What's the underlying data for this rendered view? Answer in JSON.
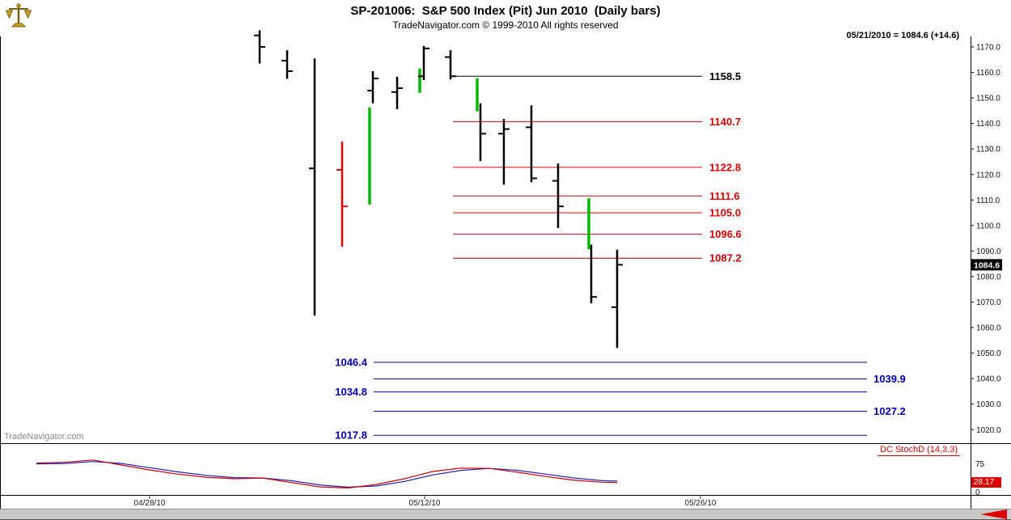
{
  "header": {
    "title": "SP-201006:  S&P 500 Index (Pit) Jun 2010  (Daily bars)",
    "copyright": "TradeNavigator.com © 1999-2010 All rights reserved",
    "quote": "05/21/2010 = 1084.6 (+14.6)",
    "logo_icon": "balance-scale-icon"
  },
  "watermark": "TradeNavigator.com",
  "chart_data": {
    "type": "ohlc-bar",
    "title": "SP-201006: S&P 500 Index (Pit) Jun 2010 (Daily bars)",
    "y_axis": {
      "side": "right",
      "ticks": [
        1170,
        1160,
        1150,
        1140,
        1130,
        1120,
        1110,
        1100,
        1090,
        1080,
        1070,
        1060,
        1050,
        1040,
        1030,
        1020
      ],
      "ylim": [
        1015,
        1178
      ],
      "last_price": 1084.6,
      "last_price_label": "1084.6"
    },
    "x_axis": {
      "labels": [
        {
          "text": "04/28/10",
          "x": 185
        },
        {
          "text": "05/12/10",
          "x": 525
        },
        {
          "text": "05/26/10",
          "x": 866
        }
      ]
    },
    "bar_colors": {
      "black": "#000000",
      "red": "#dd0000",
      "green": "#00bb00"
    },
    "bars": [
      {
        "x": 321,
        "hi": 1176.5,
        "lo": 1163.5,
        "o": 1174.5,
        "c": 1170.0,
        "color": "black"
      },
      {
        "x": 355,
        "hi": 1168.7,
        "lo": 1157.5,
        "o": 1164.6,
        "c": 1160.5,
        "color": "black"
      },
      {
        "x": 389,
        "hi": 1165.5,
        "lo": 1064.7,
        "o": 1122.4,
        "c": null,
        "color": "black"
      },
      {
        "x": 423,
        "hi": 1132.9,
        "lo": 1091.7,
        "o": 1121.8,
        "c": 1107.5,
        "color": "red"
      },
      {
        "x": 457,
        "hi": 1146.3,
        "lo": 1108.2,
        "o": null,
        "c": null,
        "color": "green"
      },
      {
        "x": 461,
        "hi": 1160.5,
        "lo": 1147.9,
        "o": 1152.9,
        "c": 1157.6,
        "color": "black"
      },
      {
        "x": 491,
        "hi": 1158.3,
        "lo": 1145.6,
        "o": 1152.3,
        "c": 1153.8,
        "color": "black"
      },
      {
        "x": 519,
        "hi": 1161.5,
        "lo": 1152.0,
        "o": null,
        "c": null,
        "color": "green"
      },
      {
        "x": 524,
        "hi": 1170.4,
        "lo": 1157.0,
        "o": 1158.5,
        "c": 1169.4,
        "color": "black"
      },
      {
        "x": 557,
        "hi": 1168.7,
        "lo": 1157.3,
        "o": 1166.0,
        "c": 1158.5,
        "color": "black"
      },
      {
        "x": 590,
        "hi": 1157.7,
        "lo": 1144.7,
        "o": null,
        "c": null,
        "color": "green"
      },
      {
        "x": 594,
        "hi": 1147.9,
        "lo": 1125.2,
        "o": null,
        "c": 1136.0,
        "color": "black"
      },
      {
        "x": 623,
        "hi": 1141.8,
        "lo": 1116.0,
        "o": 1136.0,
        "c": 1137.8,
        "color": "black"
      },
      {
        "x": 657,
        "hi": 1147.1,
        "lo": 1117.0,
        "o": 1138.5,
        "c": 1118.5,
        "color": "black"
      },
      {
        "x": 690,
        "hi": 1124.3,
        "lo": 1099.0,
        "o": 1117.5,
        "c": 1107.5,
        "color": "black"
      },
      {
        "x": 728,
        "hi": 1110.7,
        "lo": 1090.7,
        "o": null,
        "c": null,
        "color": "green"
      },
      {
        "x": 731,
        "hi": 1092.5,
        "lo": 1069.5,
        "o": null,
        "c": 1072.0,
        "color": "black"
      },
      {
        "x": 763,
        "hi": 1090.5,
        "lo": 1052.0,
        "o": 1068.0,
        "c": 1084.6,
        "color": "black"
      }
    ],
    "levels": [
      {
        "label": "1158.5",
        "price": 1158.5,
        "color": "#000000",
        "label_color": "#000000"
      },
      {
        "label": "1140.7",
        "price": 1140.7,
        "color": "#dd0000",
        "label_color": "#dd0000"
      },
      {
        "label": "1122.8",
        "price": 1122.8,
        "color": "#dd0000",
        "label_color": "#dd0000"
      },
      {
        "label": "1111.6",
        "price": 1111.6,
        "color": "#dd0000",
        "label_color": "#dd0000"
      },
      {
        "label": "1105.0",
        "price": 1105.0,
        "color": "#dd0000",
        "label_color": "#dd0000"
      },
      {
        "label": "1096.6",
        "price": 1096.6,
        "color": "#dd0000",
        "label_color": "#dd0000"
      },
      {
        "label": "1087.2",
        "price": 1087.2,
        "color": "#990000",
        "label_color": "#cc0000"
      }
    ],
    "level_span": [
      560,
      868
    ],
    "targets": [
      {
        "label": "1046.4",
        "price": 1046.4,
        "side": "left"
      },
      {
        "label": "1039.9",
        "price": 1039.9,
        "side": "right"
      },
      {
        "label": "1034.8",
        "price": 1034.8,
        "side": "left"
      },
      {
        "label": "1027.2",
        "price": 1027.2,
        "side": "right"
      },
      {
        "label": "1017.8",
        "price": 1017.8,
        "side": "left"
      }
    ],
    "target_color": "#0000bb",
    "target_span": [
      462,
      1072
    ],
    "stoch": {
      "label": "DC StochD (14,3,3)",
      "axis_top_label": "75",
      "axis_bottom_label": "0",
      "range": [
        0,
        100
      ],
      "last_value": 28.17,
      "last_value_label": "28.17",
      "red_color": "#cc0000",
      "blue_color": "#2222bb",
      "red_series": [
        [
          45,
          79
        ],
        [
          80,
          81
        ],
        [
          115,
          87
        ],
        [
          150,
          74
        ],
        [
          185,
          61
        ],
        [
          220,
          50
        ],
        [
          255,
          42
        ],
        [
          290,
          38
        ],
        [
          325,
          40
        ],
        [
          360,
          28
        ],
        [
          395,
          17
        ],
        [
          430,
          14
        ],
        [
          465,
          23
        ],
        [
          500,
          38
        ],
        [
          535,
          57
        ],
        [
          570,
          66
        ],
        [
          605,
          65
        ],
        [
          640,
          55
        ],
        [
          675,
          44
        ],
        [
          710,
          34
        ],
        [
          745,
          29
        ],
        [
          763,
          28
        ]
      ],
      "blue_series": [
        [
          45,
          77
        ],
        [
          80,
          78
        ],
        [
          115,
          83
        ],
        [
          150,
          78
        ],
        [
          185,
          67
        ],
        [
          220,
          56
        ],
        [
          255,
          47
        ],
        [
          290,
          41
        ],
        [
          325,
          40
        ],
        [
          360,
          33
        ],
        [
          395,
          22
        ],
        [
          430,
          16
        ],
        [
          465,
          19
        ],
        [
          500,
          31
        ],
        [
          535,
          48
        ],
        [
          570,
          60
        ],
        [
          605,
          65
        ],
        [
          640,
          60
        ],
        [
          675,
          50
        ],
        [
          710,
          40
        ],
        [
          745,
          33
        ],
        [
          763,
          32
        ]
      ]
    }
  }
}
